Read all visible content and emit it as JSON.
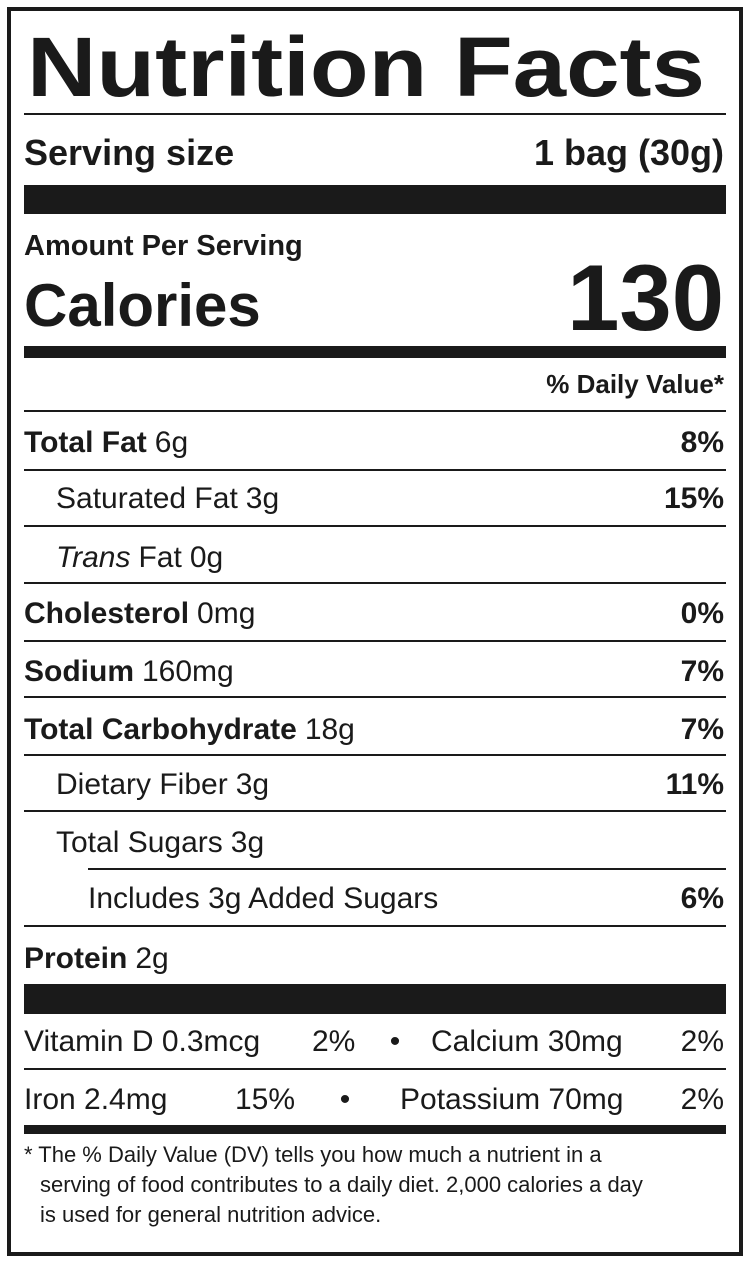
{
  "title": "Nutrition Facts",
  "serving": {
    "label": "Serving size",
    "value": "1 bag (30g)"
  },
  "amount_per_serving": "Amount Per Serving",
  "calories": {
    "label": "Calories",
    "value": "130"
  },
  "daily_value_header": "% Daily Value*",
  "nutrients": [
    {
      "name": "Total Fat",
      "amount": "6g",
      "dv": "8%",
      "bold": true,
      "indent": 0
    },
    {
      "name": "Saturated Fat",
      "amount": "3g",
      "dv": "15%",
      "bold": false,
      "indent": 1
    },
    {
      "name_italic": "Trans",
      "name": "Fat",
      "amount": "0g",
      "bold": false,
      "indent": 1
    },
    {
      "name": "Cholesterol",
      "amount": "0mg",
      "dv": "0%",
      "bold": true,
      "indent": 0
    },
    {
      "name": "Sodium",
      "amount": "160mg",
      "dv": "7%",
      "bold": true,
      "indent": 0
    },
    {
      "name": "Total Carbohydrate",
      "amount": "18g",
      "dv": "7%",
      "bold": true,
      "indent": 0
    },
    {
      "name": "Dietary Fiber",
      "amount": "3g",
      "dv": "11%",
      "bold": false,
      "indent": 1
    },
    {
      "name": "Total Sugars",
      "amount": "3g",
      "bold": false,
      "indent": 1
    },
    {
      "name": "Includes 3g Added Sugars",
      "dv": "6%",
      "bold": false,
      "indent": 2
    },
    {
      "name": "Protein",
      "amount": "2g",
      "bold": true,
      "indent": 0
    }
  ],
  "separator": "•",
  "vitamins": [
    [
      {
        "name": "Vitamin D 0.3mcg",
        "dv": "2%"
      },
      {
        "name": "Calcium 30mg",
        "dv": "2%"
      }
    ],
    [
      {
        "name": "Iron 2.4mg",
        "dv": "15%"
      },
      {
        "name": "Potassium 70mg",
        "dv": "2%"
      }
    ]
  ],
  "footnote": [
    "* The % Daily Value (DV) tells you how much a nutrient in a",
    "serving of food contributes to a daily diet. 2,000 calories a day",
    "is used for general nutrition advice."
  ]
}
